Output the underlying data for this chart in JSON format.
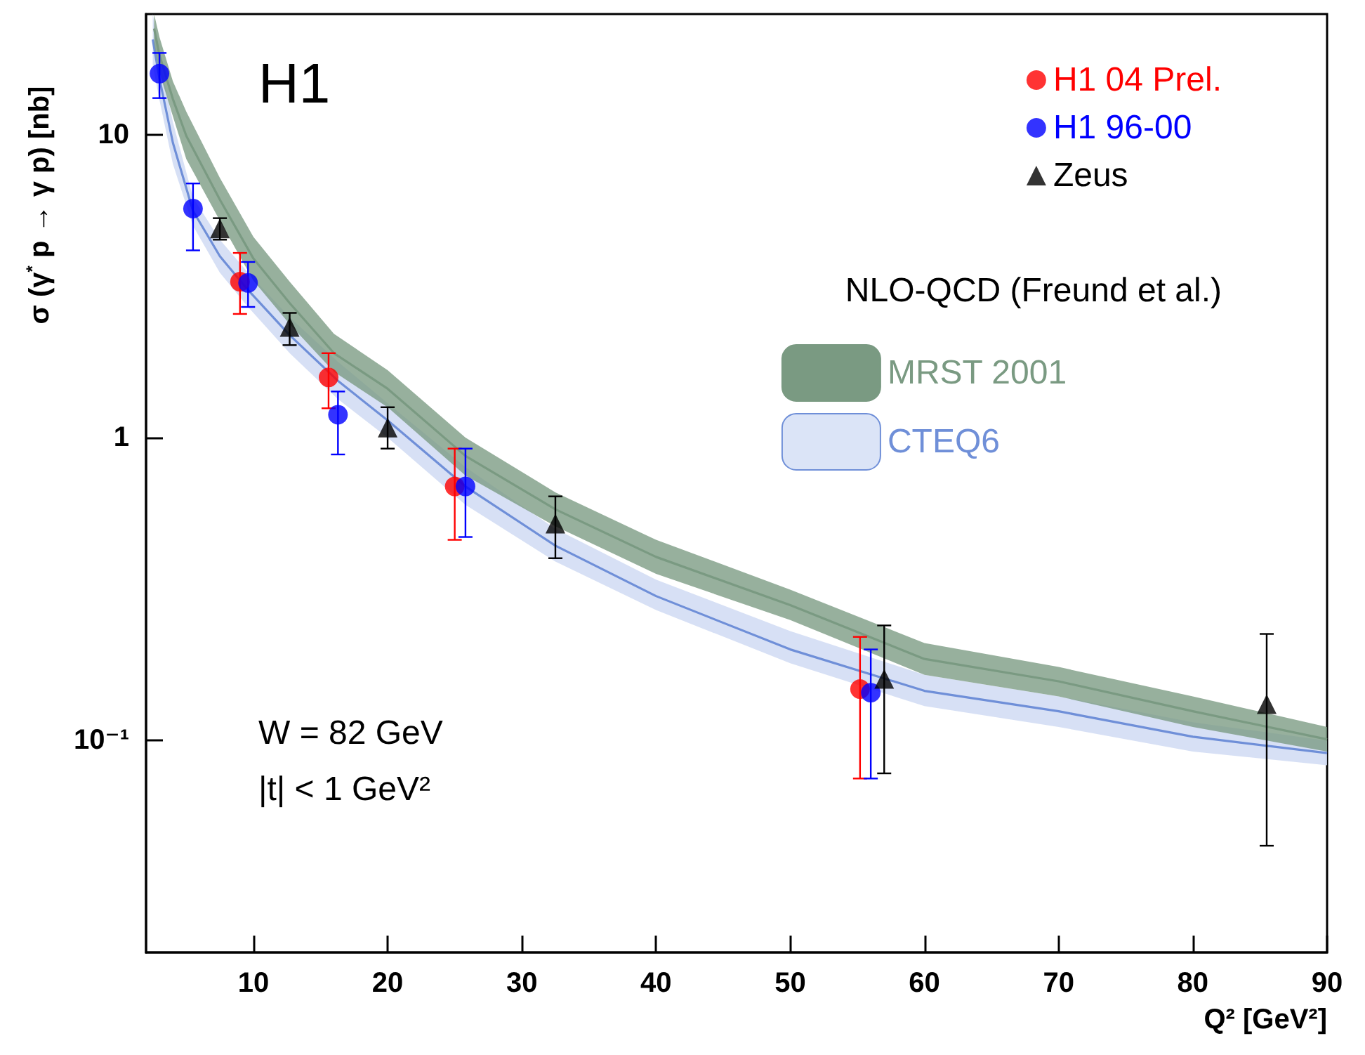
{
  "chart_data": {
    "type": "scatter",
    "xlabel": "Q² [GeV²]",
    "ylabel": "σ (γ$^{*}$ p → γ p) [nb]",
    "legend_title": "NLO-QCD (Freund et al.)",
    "annotations": [
      "H1",
      "W = 82 GeV",
      "|t| < 1 GeV²"
    ],
    "log": "y",
    "grid": false,
    "legend": "top right",
    "xlim": [
      2,
      90
    ],
    "xticks": [
      10,
      20,
      30,
      40,
      50,
      60,
      70,
      80,
      90
    ],
    "ylim": [
      0.02,
      25
    ],
    "yticks": [
      {
        "value": 0.1,
        "label": "10⁻¹"
      },
      1,
      10
    ],
    "series": [
      {
        "name": "H1 04 Prel.",
        "marker": "circle",
        "color": "#ff0000",
        "x": [
          9,
          15.6,
          25,
          55.2
        ],
        "values": [
          3.27,
          1.58,
          0.69,
          0.148
        ],
        "errors": [
          [
            2.56,
            4.07
          ],
          [
            1.25,
            1.9
          ],
          [
            0.46,
            0.92
          ],
          [
            0.075,
            0.22
          ]
        ]
      },
      {
        "name": "H1 96-00",
        "marker": "circle",
        "color": "#0000ff",
        "x": [
          3,
          5.5,
          9.6,
          16.3,
          25.8,
          56
        ],
        "values": [
          15.9,
          5.7,
          3.24,
          1.19,
          0.69,
          0.144
        ],
        "errors": [
          [
            13.2,
            18.6
          ],
          [
            4.15,
            6.9
          ],
          [
            2.7,
            3.8
          ],
          [
            0.88,
            1.42
          ],
          [
            0.47,
            0.92
          ],
          [
            0.075,
            0.2
          ]
        ]
      },
      {
        "name": "Zeus",
        "marker": "triangle",
        "color": "#000000",
        "x": [
          7.5,
          12.7,
          20,
          32.5,
          57,
          85.5
        ],
        "values": [
          4.9,
          2.32,
          1.08,
          0.52,
          0.16,
          0.132
        ],
        "errors": [
          [
            4.5,
            5.3
          ],
          [
            2.02,
            2.58
          ],
          [
            0.92,
            1.26
          ],
          [
            0.4,
            0.64
          ],
          [
            0.078,
            0.24
          ],
          [
            0.045,
            0.225
          ]
        ]
      },
      {
        "name": "MRST 2001",
        "type": "line",
        "color": "#7a9a82",
        "x": [
          2.6,
          3,
          4,
          5,
          7.5,
          10,
          12.7,
          16,
          20,
          25.8,
          32.5,
          40,
          50,
          60,
          70,
          80,
          90
        ],
        "upper": [
          25,
          21,
          15,
          11.9,
          7.2,
          4.6,
          3.27,
          2.2,
          1.67,
          1.0,
          0.66,
          0.46,
          0.315,
          0.21,
          0.175,
          0.14,
          0.111
        ],
        "values": [
          22.4,
          18.3,
          13.1,
          9.9,
          6.1,
          3.9,
          2.78,
          1.9,
          1.45,
          0.87,
          0.58,
          0.404,
          0.28,
          0.186,
          0.157,
          0.125,
          0.101
        ],
        "lower": [
          20,
          16,
          11.5,
          8.3,
          5.2,
          3.3,
          2.37,
          1.65,
          1.26,
          0.75,
          0.51,
          0.355,
          0.25,
          0.165,
          0.14,
          0.111,
          0.092
        ]
      },
      {
        "name": "CTEQ6",
        "type": "line",
        "color": "#6f8fd8",
        "x": [
          2.5,
          3,
          4,
          5.5,
          7.5,
          9.6,
          12.7,
          16.3,
          20,
          25.8,
          32.5,
          40,
          50,
          60,
          70,
          80,
          90
        ],
        "upper": [
          25,
          18,
          11,
          6.2,
          4.5,
          3.5,
          2.5,
          1.78,
          1.3,
          0.8,
          0.5,
          0.34,
          0.23,
          0.165,
          0.14,
          0.115,
          0.1
        ],
        "values": [
          20.6,
          15.3,
          9.4,
          5.6,
          3.97,
          3.07,
          2.18,
          1.54,
          1.14,
          0.69,
          0.44,
          0.3,
          0.2,
          0.146,
          0.125,
          0.103,
          0.091
        ],
        "lower": [
          17,
          13,
          8,
          5.0,
          3.5,
          2.7,
          1.9,
          1.34,
          1.0,
          0.6,
          0.39,
          0.27,
          0.18,
          0.13,
          0.111,
          0.092,
          0.083
        ]
      }
    ]
  }
}
